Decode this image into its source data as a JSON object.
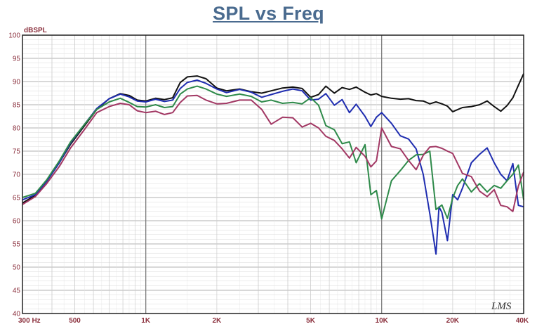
{
  "chart_data": {
    "type": "line",
    "title": "SPL vs Freq",
    "ylabel": "dBSPL",
    "xlabel": "",
    "x_scale": "log",
    "xlim": [
      300,
      40000
    ],
    "ylim": [
      40,
      100
    ],
    "grid": true,
    "watermark": "LMS",
    "y_ticks": [
      "100",
      "95",
      "90",
      "85",
      "80",
      "75",
      "70",
      "65",
      "60",
      "55",
      "50",
      "45",
      "40"
    ],
    "x_ticks": [
      {
        "value": 300,
        "label": "300  Hz"
      },
      {
        "value": 500,
        "label": "500"
      },
      {
        "value": 1000,
        "label": "1K"
      },
      {
        "value": 2000,
        "label": "2K"
      },
      {
        "value": 5000,
        "label": "5K"
      },
      {
        "value": 10000,
        "label": "10K"
      },
      {
        "value": 20000,
        "label": "20K"
      },
      {
        "value": 40000,
        "label": "40K"
      }
    ],
    "series": [
      {
        "color": "#111111",
        "x": [
          300,
          340,
          380,
          430,
          480,
          550,
          620,
          700,
          780,
          850,
          920,
          1000,
          1100,
          1200,
          1300,
          1400,
          1500,
          1650,
          1800,
          2000,
          2200,
          2500,
          2800,
          3100,
          3400,
          3800,
          4200,
          4600,
          5000,
          5400,
          5800,
          6300,
          6800,
          7300,
          7800,
          8500,
          9000,
          9500,
          10000,
          11000,
          12000,
          13000,
          14000,
          15000,
          16000,
          17000,
          18000,
          19000,
          20000,
          22000,
          24000,
          26000,
          28000,
          30000,
          32000,
          34000,
          36000,
          38000,
          40000
        ],
        "y": [
          63.8,
          65.5,
          68.5,
          72.5,
          76.5,
          80.5,
          84,
          86.3,
          87.4,
          87,
          86,
          85.8,
          86.4,
          86.1,
          86.5,
          89.8,
          91,
          91.2,
          90.6,
          88.6,
          88,
          88.4,
          87.8,
          87.5,
          88,
          88.6,
          88.8,
          88.5,
          86.6,
          87.2,
          89,
          87.5,
          88.7,
          88.3,
          88.8,
          87.7,
          87.1,
          87.4,
          86.8,
          86.4,
          86.2,
          86.3,
          85.9,
          85.8,
          85.2,
          85.6,
          85.2,
          84.7,
          83.5,
          84.4,
          84.6,
          85,
          85.8,
          84.6,
          83.6,
          84.8,
          86.5,
          89.2,
          91.7
        ]
      },
      {
        "color": "#1f2db0",
        "x": [
          300,
          340,
          380,
          430,
          480,
          550,
          620,
          700,
          780,
          850,
          920,
          1000,
          1100,
          1200,
          1300,
          1400,
          1500,
          1650,
          1800,
          2000,
          2200,
          2500,
          2800,
          3100,
          3400,
          3800,
          4200,
          4600,
          5000,
          5400,
          5800,
          6300,
          6800,
          7300,
          7800,
          8500,
          9000,
          9500,
          10000,
          11000,
          12000,
          13000,
          14000,
          15000,
          16000,
          17000,
          17500,
          18000,
          19000,
          20000,
          21000,
          22000,
          24000,
          26000,
          28000,
          30000,
          32000,
          34000,
          36000,
          38000,
          40000
        ],
        "y": [
          64.5,
          65.6,
          68.5,
          72.5,
          76.8,
          80.8,
          84.2,
          86.3,
          87.3,
          86.7,
          85.8,
          85.6,
          86.2,
          85.7,
          86,
          88.5,
          89.8,
          90.3,
          89.6,
          88.4,
          87.6,
          88.3,
          87.7,
          86.6,
          87.2,
          87.9,
          88.4,
          88,
          86,
          86.2,
          87.4,
          84.9,
          86.1,
          83.3,
          85.1,
          82.5,
          80.3,
          82.3,
          83.3,
          81,
          78.3,
          77.6,
          75.5,
          70,
          61.5,
          52.8,
          63,
          61.8,
          55.7,
          65.6,
          64.5,
          67,
          72.5,
          74.3,
          75.7,
          72.5,
          70,
          68.6,
          72.3,
          63.3,
          63
        ]
      },
      {
        "color": "#2e8a4a",
        "x": [
          300,
          340,
          380,
          430,
          480,
          550,
          620,
          700,
          780,
          850,
          920,
          1000,
          1100,
          1200,
          1300,
          1400,
          1500,
          1650,
          1800,
          2000,
          2200,
          2500,
          2800,
          3100,
          3400,
          3800,
          4200,
          4600,
          5000,
          5400,
          5800,
          6300,
          6800,
          7300,
          7800,
          8500,
          9000,
          9500,
          10000,
          11000,
          12000,
          13000,
          14000,
          15000,
          16000,
          17000,
          18000,
          19000,
          20000,
          21000,
          22000,
          24000,
          26000,
          28000,
          30000,
          32000,
          34000,
          36000,
          38000,
          40000
        ],
        "y": [
          65,
          65.9,
          68.8,
          72.9,
          77,
          80.8,
          84,
          85.6,
          86.4,
          85.5,
          84.6,
          84.5,
          85,
          84.4,
          84.6,
          87.3,
          88.4,
          89,
          88.4,
          87.3,
          86.8,
          87.3,
          86.8,
          85.6,
          86,
          85.3,
          85.5,
          85.2,
          86.5,
          84.9,
          80.5,
          79.6,
          76.6,
          77,
          72.5,
          76.4,
          65.6,
          66.5,
          60.4,
          68.6,
          70.8,
          73,
          74.2,
          74.3,
          75,
          62.4,
          63.4,
          60.5,
          64.9,
          67.6,
          69,
          66.2,
          68,
          66.2,
          67.6,
          67,
          68.6,
          70,
          72,
          64.5
        ]
      },
      {
        "color": "#a23864",
        "x": [
          300,
          340,
          380,
          430,
          480,
          550,
          620,
          700,
          780,
          850,
          920,
          1000,
          1100,
          1200,
          1300,
          1400,
          1500,
          1650,
          1800,
          2000,
          2200,
          2500,
          2800,
          3100,
          3400,
          3800,
          4200,
          4600,
          5000,
          5400,
          5800,
          6300,
          6800,
          7300,
          7800,
          8500,
          9000,
          9500,
          10000,
          11000,
          12000,
          13000,
          14000,
          15000,
          16000,
          17000,
          18000,
          19000,
          20000,
          22000,
          24000,
          26000,
          28000,
          30000,
          32000,
          34000,
          36000,
          38000,
          40000
        ],
        "y": [
          63.5,
          65.2,
          68,
          71.7,
          75.7,
          79.7,
          83.3,
          84.6,
          85.3,
          85,
          83.7,
          83.3,
          83.6,
          82.9,
          83.3,
          85.5,
          86.9,
          87,
          86,
          85.2,
          85.3,
          86,
          86,
          84,
          80.8,
          82.3,
          82.2,
          80.2,
          81,
          80,
          78.2,
          77.3,
          75.5,
          73.5,
          75.8,
          73.9,
          71.6,
          72.9,
          80,
          76,
          75.5,
          73,
          71,
          74.1,
          75.9,
          76,
          75.6,
          75,
          74.5,
          70.2,
          69.5,
          66.4,
          65.2,
          66.7,
          63.3,
          63,
          62,
          67.5,
          70.5
        ]
      }
    ]
  }
}
